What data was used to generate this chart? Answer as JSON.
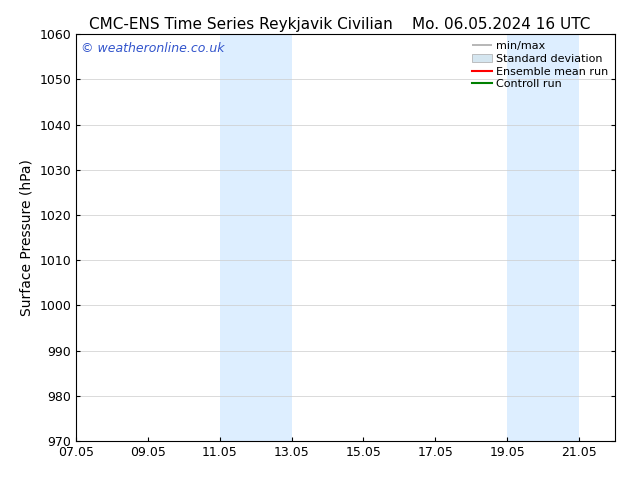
{
  "title_left": "CMC-ENS Time Series Reykjavik Civilian",
  "title_right": "Mo. 06.05.2024 16 UTC",
  "ylabel": "Surface Pressure (hPa)",
  "ylim": [
    970,
    1060
  ],
  "yticks": [
    970,
    980,
    990,
    1000,
    1010,
    1020,
    1030,
    1040,
    1050,
    1060
  ],
  "xlim_start": 7.0,
  "xlim_end": 22.0,
  "xtick_labels": [
    "07.05",
    "09.05",
    "11.05",
    "13.05",
    "15.05",
    "17.05",
    "19.05",
    "21.05"
  ],
  "xtick_positions": [
    7.0,
    9.0,
    11.0,
    13.0,
    15.0,
    17.0,
    19.0,
    21.0
  ],
  "shaded_bands": [
    {
      "x_start": 11.0,
      "x_end": 13.0
    },
    {
      "x_start": 19.0,
      "x_end": 21.0
    }
  ],
  "shaded_color": "#ddeeff",
  "background_color": "#ffffff",
  "watermark_text": "© weatheronline.co.uk",
  "watermark_color": "#3355cc",
  "legend_labels": [
    "min/max",
    "Standard deviation",
    "Ensemble mean run",
    "Controll run"
  ],
  "legend_line_colors": [
    "#aaaaaa",
    "#ccddee",
    "#ff0000",
    "#006600"
  ],
  "title_fontsize": 11,
  "tick_fontsize": 9,
  "ylabel_fontsize": 10,
  "legend_fontsize": 8,
  "watermark_fontsize": 9
}
